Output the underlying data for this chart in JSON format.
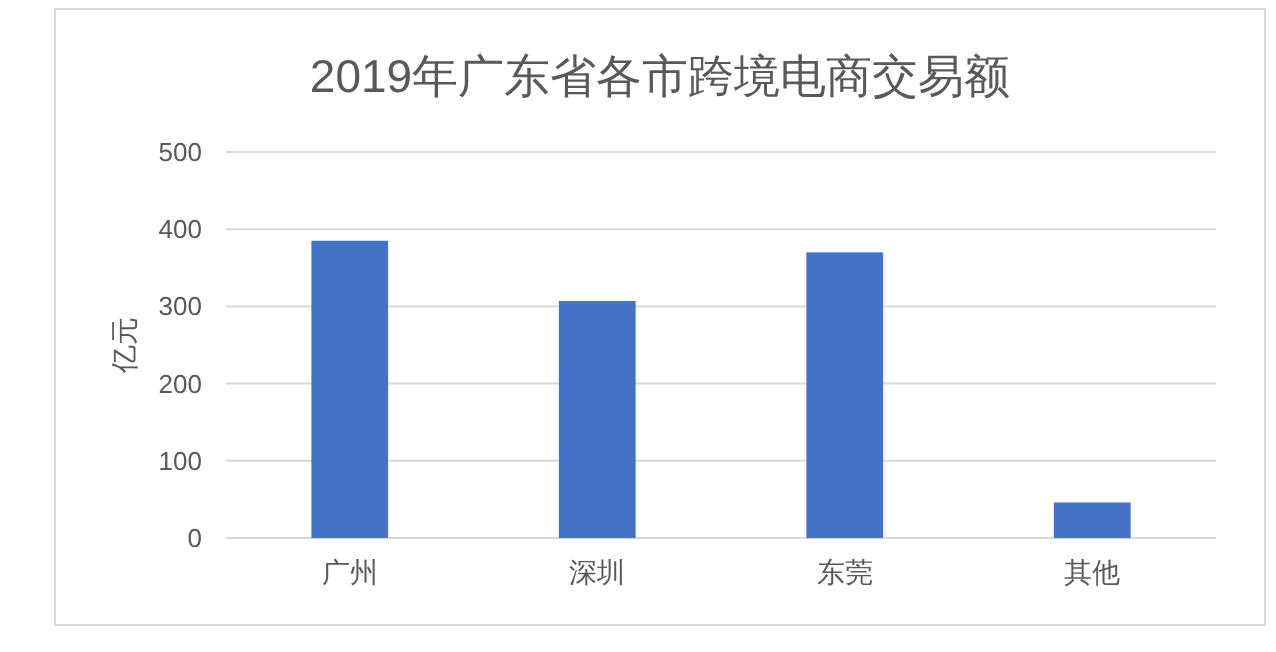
{
  "chart_data": {
    "type": "bar",
    "title": "2019年广东省各市跨境电商交易额",
    "ylabel": "亿元",
    "categories": [
      "广州",
      "深圳",
      "东莞",
      "其他"
    ],
    "values": [
      385,
      307,
      370,
      46
    ],
    "color": "#4472c4",
    "ylim": [
      0,
      500
    ],
    "yticks": [
      0,
      100,
      200,
      300,
      400,
      500
    ],
    "grid": "y"
  }
}
